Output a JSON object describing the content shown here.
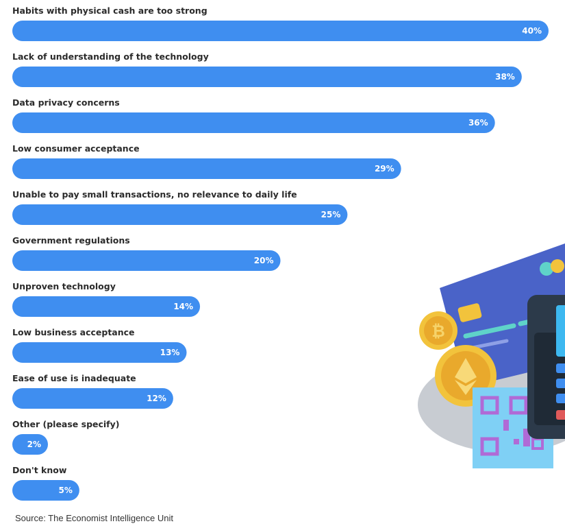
{
  "chart_data": {
    "type": "bar",
    "orientation": "horizontal",
    "categories": [
      "Habits with physical cash are too strong",
      "Lack of understanding of the technology",
      "Data privacy concerns",
      "Low consumer acceptance",
      "Unable to pay small transactions, no relevance to daily life",
      "Government regulations",
      "Unproven technology",
      "Low business acceptance",
      "Ease of use is inadequate",
      "Other (please specify)",
      "Don't know"
    ],
    "values": [
      40,
      38,
      36,
      29,
      25,
      20,
      14,
      13,
      12,
      2,
      5
    ],
    "value_labels": [
      "40%",
      "38%",
      "36%",
      "29%",
      "25%",
      "20%",
      "14%",
      "13%",
      "12%",
      "2%",
      "5%"
    ],
    "unit": "%",
    "bar_color": "#3f8ef0",
    "label_color": "#2b2b2b",
    "value_label_color": "#ffffff",
    "grid": false,
    "legend": "none"
  },
  "source": "Source: The Economist Intelligence Unit",
  "illustration": {
    "icons": [
      "credit-card-icon",
      "bitcoin-coin-icon",
      "ethereum-coin-icon",
      "qr-code-icon",
      "payment-terminal-icon"
    ],
    "colors": {
      "card": "#4a63c8",
      "coin": "#f2c33c",
      "qr_background": "#7fd0f5",
      "qr_pattern": "#b06ad6",
      "terminal": "#2c3a4a",
      "shadow": "#c8ccd2"
    }
  }
}
